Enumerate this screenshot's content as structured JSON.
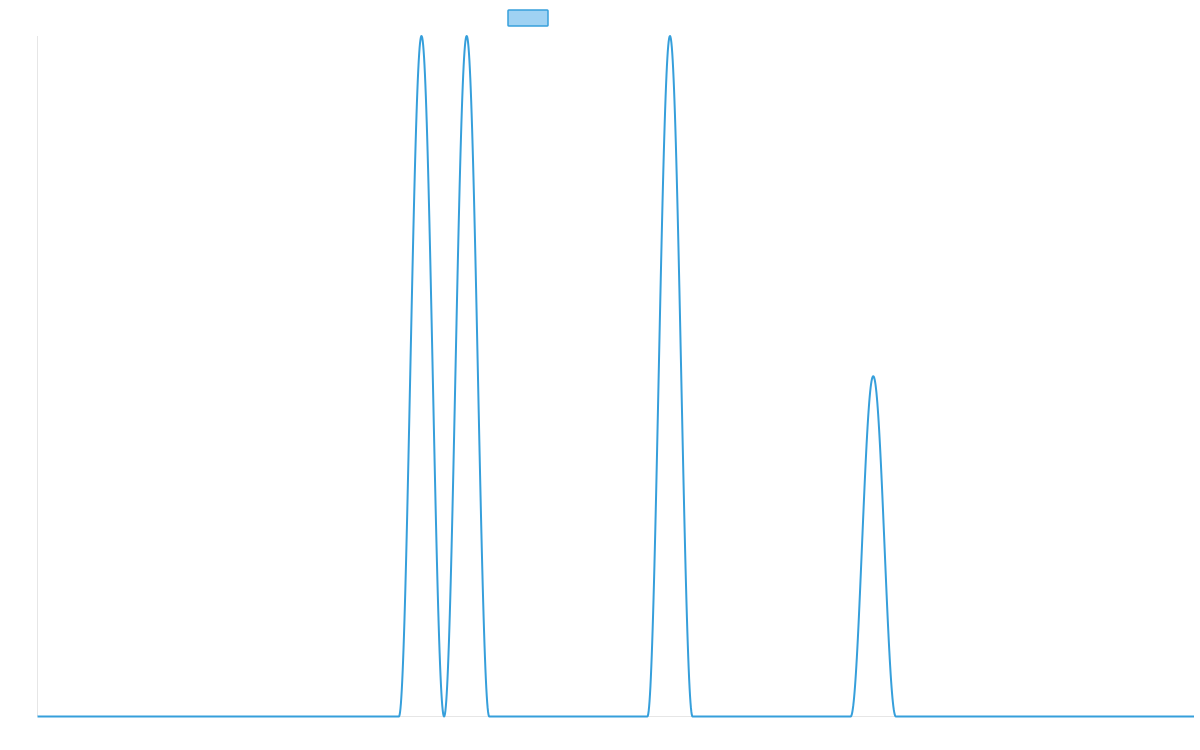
{
  "chart_data": {
    "type": "line",
    "title": "",
    "xlabel": "",
    "ylabel": "",
    "x_range": [
      0,
      25.6
    ],
    "ylim": [
      0,
      1
    ],
    "grid": false,
    "legend": {
      "placement": "top-center",
      "entries": [
        {
          "name": "",
          "color": "#369fdb",
          "fill": "#9fd2f3"
        }
      ]
    },
    "series": [
      {
        "name": "",
        "color": "#369fdb",
        "peaks": [
          {
            "center": 8.5,
            "height": 1.0,
            "half_width": 0.5
          },
          {
            "center": 9.5,
            "height": 1.0,
            "half_width": 0.5
          },
          {
            "center": 14.0,
            "height": 1.0,
            "half_width": 0.5
          },
          {
            "center": 18.5,
            "height": 0.5,
            "half_width": 0.5
          }
        ]
      }
    ]
  }
}
